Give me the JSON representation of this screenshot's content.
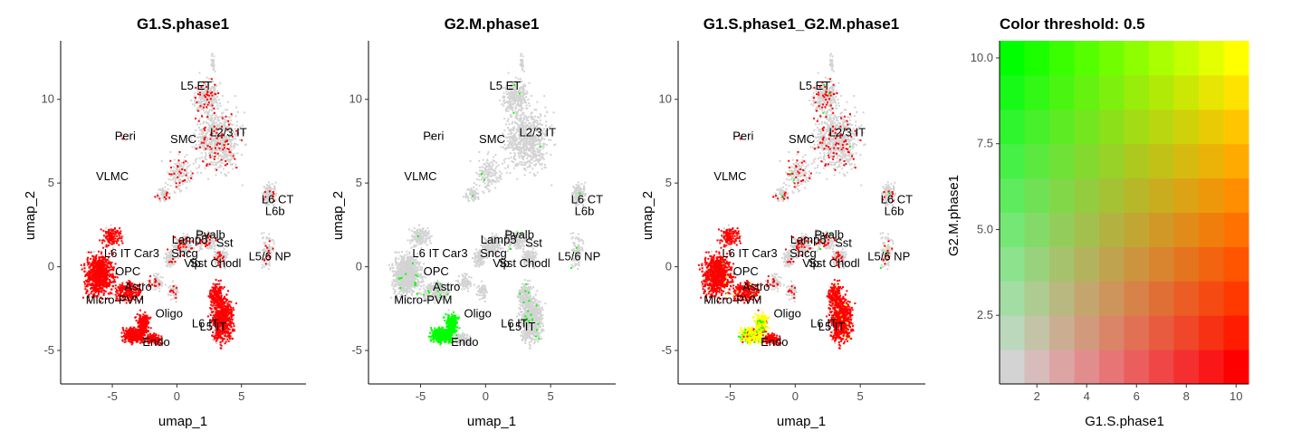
{
  "panels": [
    {
      "title": "G1.S.phase1",
      "mode": "red"
    },
    {
      "title": "G2.M.phase1",
      "mode": "green"
    },
    {
      "title": "G1.S.phase1_G2.M.phase1",
      "mode": "blend"
    }
  ],
  "legend_panel": {
    "title": "Color threshold: 0.5"
  },
  "colors": {
    "background_cell": "#d3d3d3",
    "red": "#ff0000",
    "green": "#00ff00",
    "yellow": "#ffff00"
  },
  "chart_data": [
    {
      "type": "scatter",
      "title": "G1.S.phase1",
      "xlabel": "umap_1",
      "ylabel": "umap_2",
      "xlim": [
        -9,
        10
      ],
      "ylim": [
        -7,
        13.5
      ],
      "xticks": [
        -5,
        0,
        5
      ],
      "yticks": [
        -5,
        0,
        5,
        10
      ],
      "grid": false,
      "cluster_labels": [
        {
          "label": "L5 ET",
          "x": 1.5,
          "y": 10.8
        },
        {
          "label": "Peri",
          "x": -4.0,
          "y": 7.8
        },
        {
          "label": "SMC",
          "x": 0.5,
          "y": 7.6
        },
        {
          "label": "L2/3 IT",
          "x": 4.0,
          "y": 8.0
        },
        {
          "label": "VLMC",
          "x": -5.0,
          "y": 5.4
        },
        {
          "label": "L6 CT",
          "x": 7.8,
          "y": 4.0
        },
        {
          "label": "L6b",
          "x": 7.6,
          "y": 3.3
        },
        {
          "label": "Pvalb",
          "x": 2.6,
          "y": 1.9
        },
        {
          "label": "Lamp5",
          "x": 1.0,
          "y": 1.6
        },
        {
          "label": "Sst",
          "x": 3.7,
          "y": 1.4
        },
        {
          "label": "L6 IT Car3",
          "x": -3.5,
          "y": 0.8
        },
        {
          "label": "Sncg",
          "x": 0.6,
          "y": 0.8
        },
        {
          "label": "L5/6 NP",
          "x": 7.2,
          "y": 0.6
        },
        {
          "label": "Vip",
          "x": 1.2,
          "y": 0.2
        },
        {
          "label": "Sst Chodl",
          "x": 3.0,
          "y": 0.2
        },
        {
          "label": "OPC",
          "x": -3.8,
          "y": -0.3
        },
        {
          "label": "Astro",
          "x": -3.0,
          "y": -1.2
        },
        {
          "label": "Micro-PVM",
          "x": -4.8,
          "y": -2.0
        },
        {
          "label": "Oligo",
          "x": -0.6,
          "y": -2.8
        },
        {
          "label": "L6 IT",
          "x": 2.2,
          "y": -3.4
        },
        {
          "label": "L5 IT",
          "x": 2.8,
          "y": -3.6
        },
        {
          "label": "Endo",
          "x": -1.6,
          "y": -4.5
        }
      ]
    },
    {
      "type": "scatter",
      "title": "G2.M.phase1",
      "xlabel": "umap_1",
      "ylabel": "umap_2",
      "xlim": [
        -9,
        10
      ],
      "ylim": [
        -7,
        13.5
      ],
      "xticks": [
        -5,
        0,
        5
      ],
      "yticks": [
        -5,
        0,
        5,
        10
      ],
      "grid": false
    },
    {
      "type": "scatter",
      "title": "G1.S.phase1_G2.M.phase1",
      "xlabel": "umap_1",
      "ylabel": "umap_2",
      "xlim": [
        -9,
        10
      ],
      "ylim": [
        -7,
        13.5
      ],
      "xticks": [
        -5,
        0,
        5
      ],
      "yticks": [
        -5,
        0,
        5,
        10
      ],
      "grid": false
    },
    {
      "type": "heatmap",
      "title": "Color threshold: 0.5",
      "xlabel": "G1.S.phase1",
      "ylabel": "G2.M.phase1",
      "xlim": [
        0.5,
        10.5
      ],
      "ylim": [
        0.5,
        10.5
      ],
      "xticks": [
        2,
        4,
        6,
        8,
        10
      ],
      "yticks": [
        2.5,
        5.0,
        7.5,
        10.0
      ],
      "x_levels": [
        1,
        2,
        3,
        4,
        5,
        6,
        7,
        8,
        9,
        10
      ],
      "y_levels": [
        1,
        2,
        3,
        4,
        5,
        6,
        7,
        8,
        9,
        10
      ]
    }
  ]
}
